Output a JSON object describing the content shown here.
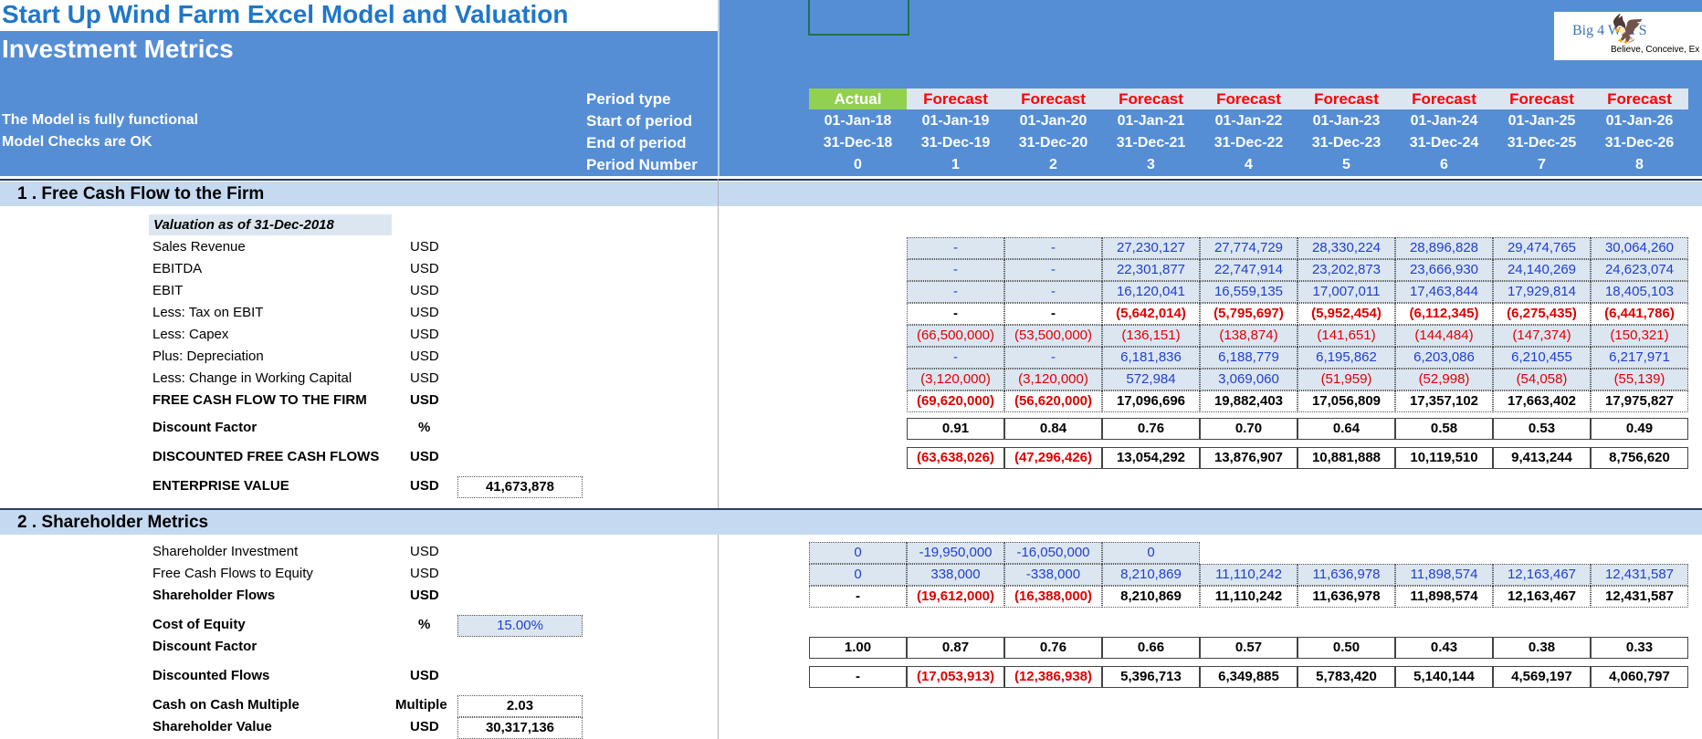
{
  "header": {
    "title": "Start Up Wind Farm Excel Model and Valuation",
    "subtitle": "Investment Metrics",
    "status_functional": "The Model is fully functional",
    "status_checks": "Model Checks are OK",
    "row_labels": [
      "Period type",
      "Start of period",
      "End of period",
      "Period Number"
    ],
    "logo_text": "Big 4 Wall S",
    "logo_tagline": "Believe, Conceive, Ex"
  },
  "periods": {
    "types": [
      "Actual",
      "Forecast",
      "Forecast",
      "Forecast",
      "Forecast",
      "Forecast",
      "Forecast",
      "Forecast",
      "Forecast"
    ],
    "starts": [
      "01-Jan-18",
      "01-Jan-19",
      "01-Jan-20",
      "01-Jan-21",
      "01-Jan-22",
      "01-Jan-23",
      "01-Jan-24",
      "01-Jan-25",
      "01-Jan-26"
    ],
    "ends": [
      "31-Dec-18",
      "31-Dec-19",
      "31-Dec-20",
      "31-Dec-21",
      "31-Dec-22",
      "31-Dec-23",
      "31-Dec-24",
      "31-Dec-25",
      "31-Dec-26"
    ],
    "numbers": [
      "0",
      "1",
      "2",
      "3",
      "4",
      "5",
      "6",
      "7",
      "8"
    ]
  },
  "section1": {
    "title": "1 . Free Cash Flow to the Firm",
    "valuation_label": "Valuation as of 31-Dec-2018",
    "rows": [
      {
        "label": "Sales Revenue",
        "unit": "USD",
        "values": [
          "-",
          "-",
          "27,230,127",
          "27,774,729",
          "28,330,224",
          "28,896,828",
          "29,474,765",
          "30,064,260"
        ]
      },
      {
        "label": "EBITDA",
        "unit": "USD",
        "values": [
          "-",
          "-",
          "22,301,877",
          "22,747,914",
          "23,202,873",
          "23,666,930",
          "24,140,269",
          "24,623,074"
        ]
      },
      {
        "label": "EBIT",
        "unit": "USD",
        "values": [
          "-",
          "-",
          "16,120,041",
          "16,559,135",
          "17,007,011",
          "17,463,844",
          "17,929,814",
          "18,405,103"
        ]
      },
      {
        "label": "Less: Tax on EBIT",
        "unit": "USD",
        "values": [
          "-",
          "-",
          "(5,642,014)",
          "(5,795,697)",
          "(5,952,454)",
          "(6,112,345)",
          "(6,275,435)",
          "(6,441,786)"
        ]
      },
      {
        "label": "Less: Capex",
        "unit": "USD",
        "values": [
          "(66,500,000)",
          "(53,500,000)",
          "(136,151)",
          "(138,874)",
          "(141,651)",
          "(144,484)",
          "(147,374)",
          "(150,321)"
        ]
      },
      {
        "label": "Plus: Depreciation",
        "unit": "USD",
        "values": [
          "-",
          "-",
          "6,181,836",
          "6,188,779",
          "6,195,862",
          "6,203,086",
          "6,210,455",
          "6,217,971"
        ]
      },
      {
        "label": "Less: Change in Working Capital",
        "unit": "USD",
        "values": [
          "(3,120,000)",
          "(3,120,000)",
          "572,984",
          "3,069,060",
          "(51,959)",
          "(52,998)",
          "(54,058)",
          "(55,139)"
        ]
      },
      {
        "label": "FREE CASH FLOW TO THE FIRM",
        "unit": "USD",
        "values": [
          "(69,620,000)",
          "(56,620,000)",
          "17,096,696",
          "19,882,403",
          "17,056,809",
          "17,357,102",
          "17,663,402",
          "17,975,827"
        ]
      }
    ],
    "discount_factor": {
      "label": "Discount Factor",
      "unit": "%",
      "values": [
        "0.91",
        "0.84",
        "0.76",
        "0.70",
        "0.64",
        "0.58",
        "0.53",
        "0.49"
      ]
    },
    "discounted_fcf": {
      "label": "DISCOUNTED FREE CASH FLOWS",
      "unit": "USD",
      "values": [
        "(63,638,026)",
        "(47,296,426)",
        "13,054,292",
        "13,876,907",
        "10,881,888",
        "10,119,510",
        "9,413,244",
        "8,756,620"
      ]
    },
    "enterprise_value": {
      "label": "ENTERPRISE VALUE",
      "unit": "USD",
      "value": "41,673,878"
    }
  },
  "section2": {
    "title": "2 . Shareholder Metrics",
    "investment": {
      "label": "Shareholder Investment",
      "unit": "USD",
      "values": [
        "0",
        "-19,950,000",
        "-16,050,000",
        "0"
      ]
    },
    "fcfe": {
      "label": "Free Cash Flows to Equity",
      "unit": "USD",
      "values": [
        "0",
        "338,000",
        "-338,000",
        "8,210,869",
        "11,110,242",
        "11,636,978",
        "11,898,574",
        "12,163,467",
        "12,431,587"
      ]
    },
    "flows": {
      "label": "Shareholder Flows",
      "unit": "USD",
      "values": [
        "-",
        "(19,612,000)",
        "(16,388,000)",
        "8,210,869",
        "11,110,242",
        "11,636,978",
        "11,898,574",
        "12,163,467",
        "12,431,587"
      ]
    },
    "cost_of_equity": {
      "label": "Cost of Equity",
      "unit": "%",
      "value": "15.00%"
    },
    "discount_factor": {
      "label": "Discount Factor",
      "values": [
        "1.00",
        "0.87",
        "0.76",
        "0.66",
        "0.57",
        "0.50",
        "0.43",
        "0.38",
        "0.33"
      ]
    },
    "discounted_flows": {
      "label": "Discounted Flows",
      "unit": "USD",
      "values": [
        "-",
        "(17,053,913)",
        "(12,386,938)",
        "5,396,713",
        "6,349,885",
        "5,783,420",
        "5,140,144",
        "4,569,197",
        "4,060,797"
      ]
    },
    "cash_multiple": {
      "label": "Cash on Cash Multiple",
      "unit": "Multiple",
      "value": "2.03"
    },
    "shareholder_value": {
      "label": "Shareholder Value",
      "unit": "USD",
      "value": "30,317,136"
    }
  },
  "colors": {
    "header_blue": "#558ED5",
    "section_band": "#C5D9F1",
    "actual_green": "#92D050",
    "forecast_red": "#FF0000",
    "input_blue": "#1F3FD0"
  }
}
